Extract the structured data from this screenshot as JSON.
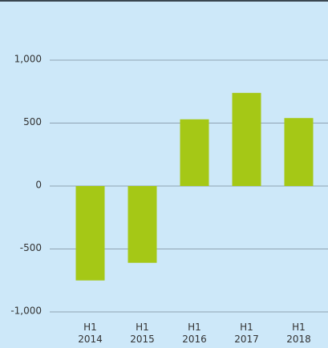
{
  "chart_data": {
    "type": "bar",
    "categories": [
      "H1 2014",
      "H1 2015",
      "H1 2016",
      "H1 2017",
      "H1 2018"
    ],
    "values": [
      -750,
      -610,
      530,
      740,
      540
    ],
    "color": "#a5c816",
    "ylim": [
      -1000,
      1000
    ],
    "yticks": [
      {
        "value": -1000,
        "label": "-1,000"
      },
      -500,
      0,
      500,
      {
        "value": 1000,
        "label": "1,000"
      }
    ],
    "grid": true
  }
}
